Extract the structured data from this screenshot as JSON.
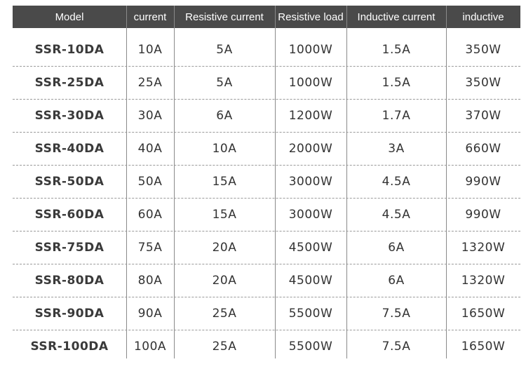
{
  "table": {
    "header": [
      "Model",
      "current",
      "Resistive current",
      "Resistive load",
      "Inductive current",
      "inductive"
    ],
    "rows": [
      [
        "SSR-10DA",
        "10A",
        "5A",
        "1000W",
        "1.5A",
        "350W"
      ],
      [
        "SSR-25DA",
        "25A",
        "5A",
        "1000W",
        "1.5A",
        "350W"
      ],
      [
        "SSR-30DA",
        "30A",
        "6A",
        "1200W",
        "1.7A",
        "370W"
      ],
      [
        "SSR-40DA",
        "40A",
        "10A",
        "2000W",
        "3A",
        "660W"
      ],
      [
        "SSR-50DA",
        "50A",
        "15A",
        "3000W",
        "4.5A",
        "990W"
      ],
      [
        "SSR-60DA",
        "60A",
        "15A",
        "3000W",
        "4.5A",
        "990W"
      ],
      [
        "SSR-75DA",
        "75A",
        "20A",
        "4500W",
        "6A",
        "1320W"
      ],
      [
        "SSR-80DA",
        "80A",
        "20A",
        "4500W",
        "6A",
        "1320W"
      ],
      [
        "SSR-90DA",
        "90A",
        "25A",
        "5500W",
        "7.5A",
        "1650W"
      ],
      [
        "SSR-100DA",
        "100A",
        "25A",
        "5500W",
        "7.5A",
        "1650W"
      ]
    ]
  }
}
